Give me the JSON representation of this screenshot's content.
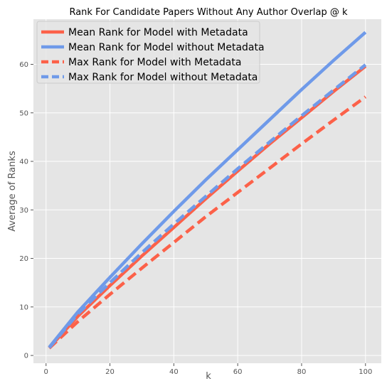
{
  "chart_data": {
    "type": "line",
    "title": "Rank For Candidate Papers Without Any Author Overlap @ k",
    "xlabel": "k",
    "ylabel": "Average of Ranks",
    "xlim": [
      -3.95,
      104.95
    ],
    "ylim": [
      -1.6,
      69.3
    ],
    "xticks": [
      0,
      20,
      40,
      60,
      80,
      100
    ],
    "yticks": [
      0,
      10,
      20,
      30,
      40,
      50,
      60
    ],
    "grid": true,
    "legend_position": "top-left",
    "x": [
      1,
      10,
      20,
      30,
      40,
      50,
      60,
      70,
      80,
      90,
      100
    ],
    "series": [
      {
        "name": "Mean Rank for Model with Metadata",
        "color": "#fc6149",
        "dash": "solid",
        "values": [
          1.6,
          8.1,
          14.4,
          20.5,
          26.4,
          32.3,
          38.0,
          43.6,
          49.0,
          54.4,
          59.6
        ]
      },
      {
        "name": "Mean Rank for Model without Metadata",
        "color": "#6f9ae9",
        "dash": "solid",
        "values": [
          1.7,
          9.0,
          16.1,
          23.0,
          29.7,
          36.2,
          42.4,
          48.6,
          54.8,
          60.8,
          66.6
        ]
      },
      {
        "name": "Max Rank for Model with Metadata",
        "color": "#fc6149",
        "dash": "dashed",
        "values": [
          1.5,
          7.0,
          12.6,
          18.0,
          23.3,
          28.6,
          33.6,
          38.6,
          43.6,
          48.5,
          53.3
        ]
      },
      {
        "name": "Max Rank for Model without Metadata",
        "color": "#6f9ae9",
        "dash": "dashed",
        "values": [
          1.6,
          8.6,
          15.0,
          21.2,
          27.1,
          32.8,
          38.5,
          44.0,
          49.4,
          54.7,
          59.9
        ]
      }
    ]
  }
}
